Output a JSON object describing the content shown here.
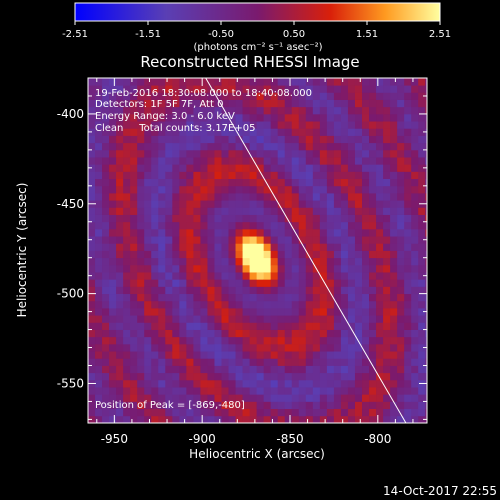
{
  "chart_data": {
    "type": "heatmap",
    "title": "Reconstructed RHESSI Image",
    "xlabel": "Heliocentric X (arcsec)",
    "ylabel": "Heliocentric Y (arcsec)",
    "xlim": [
      -965,
      -772
    ],
    "ylim": [
      -572,
      -380
    ],
    "xticks": [
      -950,
      -900,
      -850,
      -800
    ],
    "yticks": [
      -400,
      -450,
      -500,
      -550
    ],
    "colorbar": {
      "min": -2.51,
      "max": 2.51,
      "ticks": [
        "-2.51",
        "-1.51",
        "-0.50",
        "0.50",
        "1.51",
        "2.51"
      ],
      "units_label": "(photons cm⁻² s⁻¹ asec⁻²)"
    },
    "annotations": [
      "19-Feb-2016 18:30:08.000 to 18:40:08.000",
      "Detectors: 1F 5F 7F, Att 0",
      "Energy Range: 3.0 - 6.0 keV",
      "Clean     Total counts: 3.17E+05"
    ],
    "peak_label": "Position of Peak = [-869,-480]",
    "peak": {
      "x": -869,
      "y": -480,
      "value": 2.51
    },
    "limb_line": {
      "x1": -898,
      "y1": -380,
      "x2": -784,
      "y2": -572
    },
    "pattern": {
      "background": -0.2,
      "ring_period_arcsec": 33,
      "ring_amplitude": 1.1,
      "axis_ratio": 1.6,
      "tilt_deg": -28,
      "noise": 0.35
    },
    "footer_timestamp": "14-Oct-2017 22:55"
  }
}
